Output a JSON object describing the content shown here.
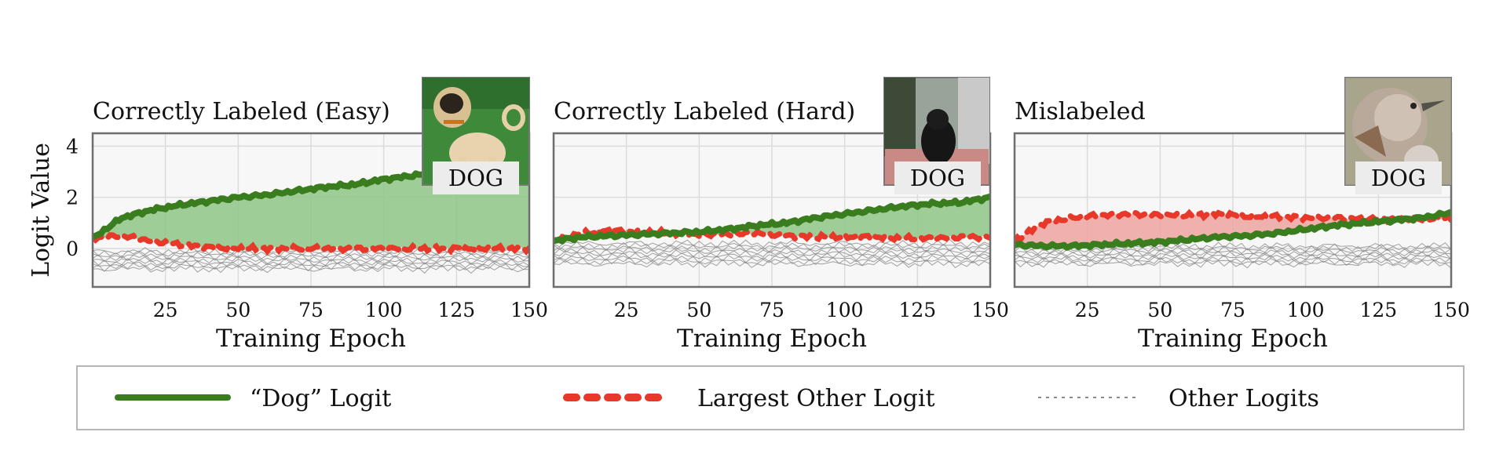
{
  "colors": {
    "dog": "#3a7d1e",
    "dog_fill": "#8fc586",
    "other": "#e8382a",
    "other_fill": "#eda5a0",
    "others_gray": "#8a8a8a",
    "grid": "#dcdcdc",
    "panel_bg": "#f7f7f7"
  },
  "figure": {
    "ylabel": "Logit Value",
    "badge_text": "DOG"
  },
  "legend": {
    "dog_label": "“Dog” Logit",
    "largest_label": "Largest Other Logit",
    "others_label": "Other Logits"
  },
  "chart_data": [
    {
      "type": "line",
      "title": "Correctly Labeled (Easy)",
      "xlabel": "Training Epoch",
      "ylabel": "Logit Value",
      "xlim": [
        0,
        150
      ],
      "ylim": [
        -1.5,
        4.5
      ],
      "xticks": [
        25,
        50,
        75,
        100,
        125,
        150
      ],
      "yticks": [
        0,
        2,
        4
      ],
      "image_icon": "pug-dog-thumbnail",
      "fill_between": "green",
      "grid": true,
      "series": [
        {
          "name": "“Dog” Logit",
          "x": [
            0,
            10,
            20,
            30,
            40,
            50,
            60,
            70,
            80,
            90,
            100,
            110,
            120,
            130,
            140,
            150
          ],
          "values": [
            0.4,
            1.2,
            1.5,
            1.7,
            1.85,
            2.0,
            2.1,
            2.25,
            2.4,
            2.5,
            2.7,
            2.85,
            3.0,
            3.1,
            3.2,
            3.3
          ]
        },
        {
          "name": "Largest Other Logit",
          "x": [
            0,
            10,
            20,
            30,
            40,
            50,
            60,
            70,
            80,
            90,
            100,
            110,
            120,
            130,
            140,
            150
          ],
          "values": [
            0.4,
            0.5,
            0.3,
            0.15,
            0.05,
            0.0,
            0.0,
            0.0,
            0.0,
            0.0,
            0.0,
            0.0,
            0.0,
            0.0,
            0.0,
            0.0
          ]
        }
      ],
      "other_logits_band": [
        -0.8,
        -0.1
      ]
    },
    {
      "type": "line",
      "title": "Correctly Labeled (Hard)",
      "xlabel": "Training Epoch",
      "ylabel": "",
      "xlim": [
        0,
        150
      ],
      "ylim": [
        -1.5,
        4.5
      ],
      "xticks": [
        25,
        50,
        75,
        100,
        125,
        150
      ],
      "yticks": [
        0,
        2,
        4
      ],
      "image_icon": "black-dog-thumbnail",
      "fill_between": "green",
      "grid": true,
      "series": [
        {
          "name": "“Dog” Logit",
          "x": [
            0,
            10,
            20,
            30,
            40,
            50,
            60,
            70,
            80,
            90,
            100,
            110,
            120,
            130,
            140,
            150
          ],
          "values": [
            0.3,
            0.45,
            0.5,
            0.55,
            0.6,
            0.65,
            0.75,
            0.9,
            1.0,
            1.2,
            1.35,
            1.5,
            1.65,
            1.75,
            1.8,
            2.0
          ]
        },
        {
          "name": "Largest Other Logit",
          "x": [
            0,
            10,
            20,
            30,
            40,
            50,
            60,
            70,
            80,
            90,
            100,
            110,
            120,
            130,
            140,
            150
          ],
          "values": [
            0.3,
            0.6,
            0.7,
            0.65,
            0.6,
            0.55,
            0.55,
            0.6,
            0.5,
            0.45,
            0.45,
            0.45,
            0.4,
            0.4,
            0.45,
            0.45
          ]
        }
      ],
      "other_logits_band": [
        -0.6,
        0.2
      ]
    },
    {
      "type": "line",
      "title": "Mislabeled",
      "xlabel": "Training Epoch",
      "ylabel": "",
      "xlim": [
        0,
        150
      ],
      "ylim": [
        -1.5,
        4.5
      ],
      "xticks": [
        25,
        50,
        75,
        100,
        125,
        150
      ],
      "yticks": [
        0,
        2,
        4
      ],
      "image_icon": "bird-thumbnail",
      "fill_between": "red",
      "grid": true,
      "series": [
        {
          "name": "“Dog” Logit",
          "x": [
            0,
            10,
            20,
            30,
            40,
            50,
            60,
            70,
            80,
            90,
            100,
            110,
            120,
            130,
            140,
            150
          ],
          "values": [
            0.15,
            0.1,
            0.1,
            0.15,
            0.2,
            0.25,
            0.35,
            0.45,
            0.5,
            0.6,
            0.75,
            0.9,
            1.0,
            1.1,
            1.2,
            1.4
          ]
        },
        {
          "name": "Largest Other Logit",
          "x": [
            0,
            10,
            20,
            30,
            40,
            50,
            60,
            70,
            80,
            90,
            100,
            110,
            120,
            130,
            140,
            150
          ],
          "values": [
            0.3,
            1.0,
            1.2,
            1.3,
            1.35,
            1.3,
            1.3,
            1.35,
            1.25,
            1.25,
            1.2,
            1.2,
            1.15,
            1.15,
            1.15,
            1.2
          ]
        }
      ],
      "other_logits_band": [
        -0.6,
        0.1
      ]
    }
  ]
}
